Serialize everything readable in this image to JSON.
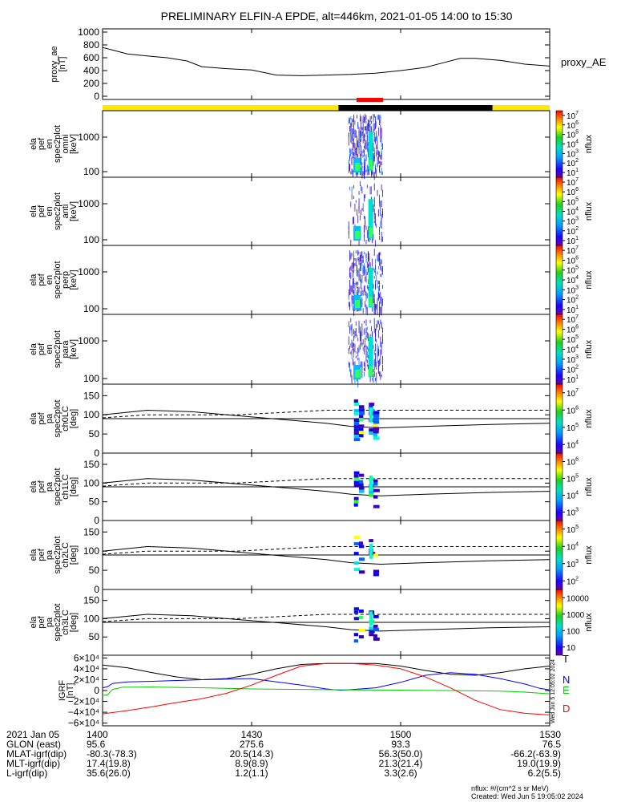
{
  "title": "PRELIMINARY ELFIN-A EPDE, alt=446km, 2021-01-05 14:00 to 15:30",
  "colors": {
    "yellow": "#ffe800",
    "black": "#000000",
    "red": "#ff0000",
    "blue": "#0000ff",
    "green": "#00cc00"
  },
  "chart_data": [
    {
      "id": "proxy_ae",
      "type": "line",
      "ylabel": [
        "proxy_ae",
        "[nT]"
      ],
      "legend": "proxy_AE",
      "ylim": [
        -50,
        1050
      ],
      "yticks": [
        0,
        200,
        400,
        600,
        800,
        1000
      ],
      "ytick_labels": [
        "0",
        "200",
        "400",
        "600",
        "800",
        "1000"
      ],
      "x": [
        0,
        2,
        5,
        10,
        13,
        17,
        20,
        25,
        30,
        35,
        40,
        45,
        50,
        55,
        60,
        65,
        68,
        72,
        75,
        80,
        85,
        90
      ],
      "values": [
        760,
        720,
        660,
        620,
        600,
        550,
        460,
        430,
        410,
        330,
        320,
        330,
        340,
        360,
        400,
        450,
        510,
        590,
        590,
        560,
        500,
        470
      ]
    },
    {
      "id": "orbit_bar",
      "type": "bar",
      "segments": [
        {
          "from": 0,
          "to": 47.5,
          "color": "yellow"
        },
        {
          "from": 47.5,
          "to": 78.5,
          "color": "black"
        },
        {
          "from": 78.5,
          "to": 90,
          "color": "yellow"
        }
      ],
      "science_zone": {
        "from": 50,
        "to": 56,
        "color": "red"
      }
    },
    {
      "id": "omni",
      "type": "heatmap",
      "ylabel": [
        "ela",
        "pef",
        "en",
        "spec2plot",
        "omni",
        "[keV]"
      ],
      "scale": "log",
      "yticks": [
        100,
        1000
      ],
      "ytick_labels": [
        "100",
        "1000"
      ],
      "cbar_exponents": [
        1,
        2,
        3,
        4,
        5,
        6,
        7
      ],
      "cbar_label": "nflux"
    },
    {
      "id": "anti",
      "type": "heatmap",
      "ylabel": [
        "ela",
        "pef",
        "en",
        "spec2plot",
        "anti",
        "[keV]"
      ],
      "scale": "log",
      "yticks": [
        100,
        1000
      ],
      "ytick_labels": [
        "100",
        "1000"
      ],
      "cbar_exponents": [
        1,
        2,
        3,
        4,
        5,
        6,
        7
      ],
      "cbar_label": "nflux"
    },
    {
      "id": "perp",
      "type": "heatmap",
      "ylabel": [
        "ela",
        "pef",
        "en",
        "spec2plot",
        "perp",
        "[keV]"
      ],
      "scale": "log",
      "yticks": [
        100,
        1000
      ],
      "ytick_labels": [
        "100",
        "1000"
      ],
      "cbar_exponents": [
        1,
        2,
        3,
        4,
        5,
        6,
        7
      ],
      "cbar_label": "nflux"
    },
    {
      "id": "para",
      "type": "heatmap",
      "ylabel": [
        "ela",
        "pef",
        "en",
        "spec2plot",
        "para",
        "[keV]"
      ],
      "scale": "log",
      "yticks": [
        100,
        1000
      ],
      "ytick_labels": [
        "100",
        "1000"
      ],
      "cbar_exponents": [
        1,
        2,
        3,
        4,
        5,
        6,
        7
      ],
      "cbar_label": "nflux"
    },
    {
      "id": "ch0LC",
      "type": "heatmap",
      "ylabel": [
        "ela",
        "pef",
        "pa",
        "spec2plot",
        "ch0LC",
        "[deg]"
      ],
      "ylim": [
        0,
        180
      ],
      "yticks": [
        0,
        50,
        100,
        150
      ],
      "ytick_labels": [
        "0",
        "50",
        "100",
        "150"
      ],
      "cbar_exponents": [
        4,
        5,
        6,
        7
      ],
      "cbar_label": "nflux"
    },
    {
      "id": "ch1LC",
      "type": "heatmap",
      "ylabel": [
        "ela",
        "pef",
        "pa",
        "spec2plot",
        "ch1LC",
        "[deg]"
      ],
      "ylim": [
        0,
        180
      ],
      "yticks": [
        0,
        50,
        100,
        150
      ],
      "ytick_labels": [
        "0",
        "50",
        "100",
        "150"
      ],
      "cbar_exponents": [
        3,
        4,
        5,
        6
      ],
      "cbar_label": "nflux"
    },
    {
      "id": "ch2LC",
      "type": "heatmap",
      "ylabel": [
        "ela",
        "pef",
        "pa",
        "spec2plot",
        "ch2LC",
        "[deg]"
      ],
      "ylim": [
        0,
        180
      ],
      "yticks": [
        0,
        50,
        100,
        150
      ],
      "ytick_labels": [
        "0",
        "50",
        "100",
        "150"
      ],
      "cbar_exponents": [
        2,
        3,
        4,
        5
      ],
      "cbar_label": "nflux"
    },
    {
      "id": "ch3LC",
      "type": "heatmap",
      "ylabel": [
        "ela",
        "pef",
        "pa",
        "spec2plot",
        "ch3LC",
        "[deg]"
      ],
      "ylim": [
        0,
        180
      ],
      "yticks": [
        50,
        100,
        150
      ],
      "ytick_labels": [
        "50",
        "100",
        "150"
      ],
      "cbar_ticks": [
        "10",
        "100",
        "1000",
        "10000"
      ],
      "cbar_label": "nflux"
    },
    {
      "id": "igrf",
      "type": "line",
      "ylabel": [
        "IGRF",
        "[nT]"
      ],
      "ylim": [
        -65000,
        65000
      ],
      "yticks": [
        -60000,
        -40000,
        -20000,
        0,
        20000,
        40000,
        60000
      ],
      "ytick_labels": [
        "−6×10⁴",
        "−4×10⁴",
        "−2×10⁴",
        "0",
        "2×10⁴",
        "4×10⁴",
        "6×10⁴"
      ],
      "legend": [
        "T",
        "N",
        "E",
        "D"
      ],
      "side_stamp": "Wed Jun  5 12:05:02 2024",
      "series": [
        {
          "name": "T",
          "color": "black",
          "x": [
            0,
            5,
            10,
            15,
            20,
            25,
            30,
            35,
            40,
            45,
            50,
            55,
            60,
            65,
            70,
            75,
            80,
            85,
            90
          ],
          "values": [
            47000,
            42000,
            33000,
            25000,
            20000,
            22000,
            30000,
            40000,
            48000,
            50000,
            50000,
            50000,
            45000,
            37000,
            30000,
            28000,
            33000,
            40000,
            45000
          ]
        },
        {
          "name": "N",
          "color": "blue",
          "x": [
            0,
            1,
            2,
            5,
            10,
            20,
            30,
            40,
            45,
            48,
            55,
            60,
            65,
            70,
            75,
            80,
            85,
            88,
            90
          ],
          "values": [
            5000,
            7000,
            13000,
            16000,
            17000,
            20000,
            22000,
            10000,
            3000,
            500,
            5000,
            15000,
            28000,
            33000,
            30000,
            22000,
            12000,
            4000,
            1000
          ]
        },
        {
          "name": "E",
          "color": "green",
          "x": [
            0,
            1,
            2,
            4,
            10,
            20,
            30,
            40,
            50,
            60,
            70,
            80,
            85,
            90
          ],
          "values": [
            -9000,
            -8000,
            2000,
            6000,
            6500,
            5000,
            3000,
            2000,
            1000,
            800,
            0,
            -1000,
            -3000,
            -6000
          ]
        },
        {
          "name": "D",
          "color": "red",
          "x": [
            0,
            5,
            10,
            15,
            20,
            25,
            30,
            35,
            40,
            45,
            50,
            55,
            60,
            65,
            70,
            75,
            80,
            85,
            90
          ],
          "values": [
            -43000,
            -37000,
            -30000,
            -22000,
            -15000,
            -5000,
            10000,
            28000,
            45000,
            50000,
            50000,
            47000,
            40000,
            25000,
            5000,
            -18000,
            -35000,
            -42000,
            -45000
          ]
        }
      ]
    }
  ],
  "x_axis": {
    "range": [
      0,
      90
    ],
    "ticks": [
      0,
      30,
      60,
      90
    ],
    "rows": [
      {
        "label": "2021 Jan 05",
        "values": [
          "1400",
          "1430",
          "1500",
          "1530"
        ]
      },
      {
        "label": "GLON (east)",
        "values": [
          "95.6",
          "275.6",
          "93.3",
          "76.5"
        ]
      },
      {
        "label": "MLAT-igrf(dip)",
        "values": [
          "-80.3(-78.3)",
          "20.5(14.3)",
          "56.3(50.0)",
          "-66.2(-63.9)"
        ]
      },
      {
        "label": "MLT-igrf(dip)",
        "values": [
          "17.4(19.8)",
          "8.9(8.9)",
          "21.3(21.4)",
          "19.0(19.9)"
        ]
      },
      {
        "label": "L-igrf(dip)",
        "values": [
          "35.6(26.0)",
          "1.2(1.1)",
          "3.3(2.6)",
          "6.2(5.5)"
        ]
      }
    ]
  },
  "footer": {
    "units": "nflux: #/(cm^2 s sr MeV)",
    "created": "Created: Wed Jun  5 19:05:02 2024"
  }
}
